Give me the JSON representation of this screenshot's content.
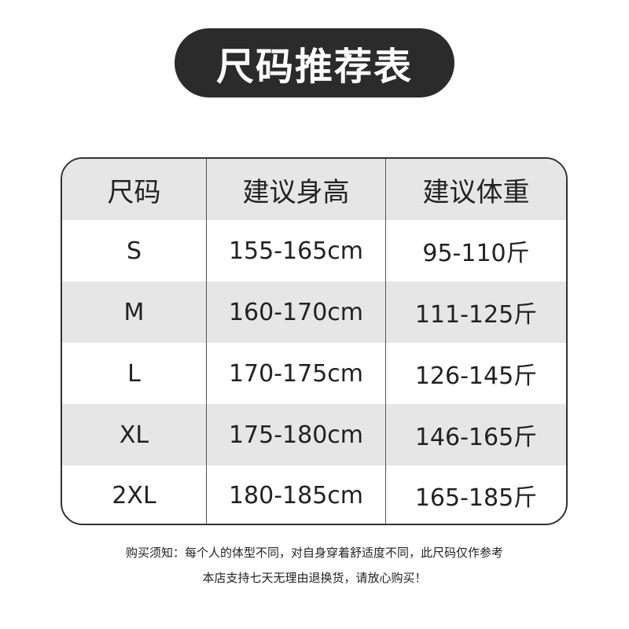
{
  "title": "尺码推荐表",
  "headers": [
    "尺码",
    "建议身高",
    "建议体重"
  ],
  "rows": [
    [
      "S",
      "155-165cm",
      "95-110斤"
    ],
    [
      "M",
      "160-170cm",
      "111-125斤"
    ],
    [
      "L",
      "170-175cm",
      "126-145斤"
    ],
    [
      "XL",
      "175-180cm",
      "146-165斤"
    ],
    [
      "2XL",
      "180-185cm",
      "165-185斤"
    ]
  ],
  "notes": [
    "购买须知：每个人的体型不同，对自身穿着舒适度不同，此尺码仅作参考",
    "本店支持七天无理由退换货，请放心购买！"
  ],
  "colors": {
    "title_bg": "#2b2b2b",
    "row_alt": "#e6e6e6"
  }
}
